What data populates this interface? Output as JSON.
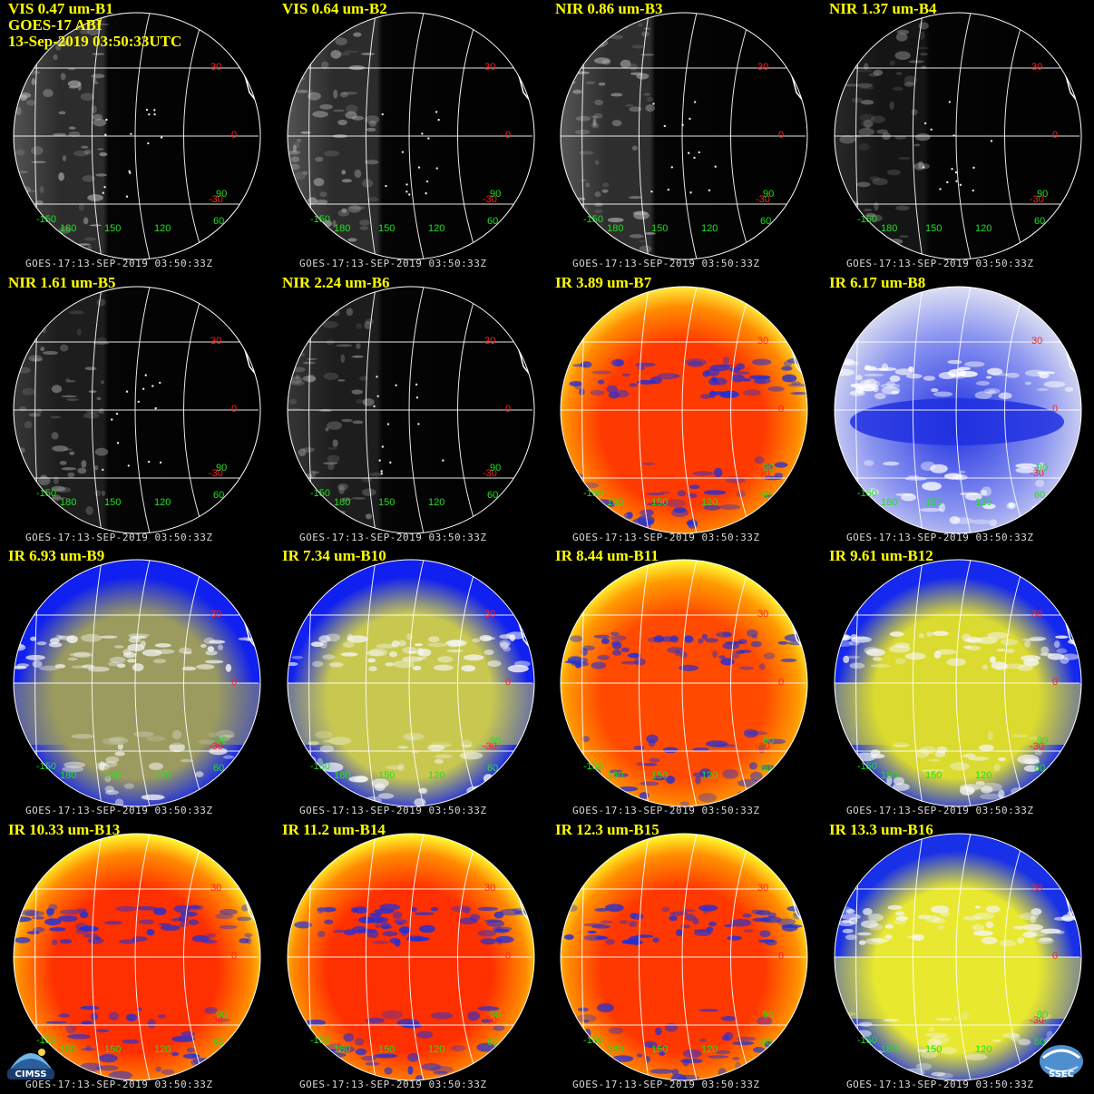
{
  "header": {
    "line1": "VIS 0.47 um-B1",
    "line2": "GOES-17 ABI",
    "line3": "13-Sep-2019 03:50:33UTC"
  },
  "footer_text": "GOES-17:13-SEP-2019 03:50:33Z",
  "lat_labels": {
    "n30": "30",
    "eq": "0",
    "s30": "-30"
  },
  "lon_labels": {
    "a": "-150",
    "b": "180",
    "c": "150",
    "d": "120",
    "e": "60",
    "f": "90"
  },
  "logos": {
    "left": "CIMSS",
    "right": "SSEC"
  },
  "panels": [
    {
      "title": "VIS 0.47 um-B1",
      "style": "vis",
      "colors": {
        "base": "#2c2c2c",
        "mid": "#5e5e5e",
        "hi": "#bdbdbd"
      }
    },
    {
      "title": "VIS 0.64 um-B2",
      "style": "vis",
      "colors": {
        "base": "#2c2c2c",
        "mid": "#5e5e5e",
        "hi": "#bdbdbd"
      }
    },
    {
      "title": "NIR 0.86 um-B3",
      "style": "vis",
      "colors": {
        "base": "#2e2e2e",
        "mid": "#626262",
        "hi": "#c2c2c2"
      }
    },
    {
      "title": "NIR 1.37 um-B4",
      "style": "vis",
      "colors": {
        "base": "#151515",
        "mid": "#2e2e2e",
        "hi": "#8c8c8c"
      }
    },
    {
      "title": "NIR 1.61 um-B5",
      "style": "vis",
      "colors": {
        "base": "#1d1d1d",
        "mid": "#3e3e3e",
        "hi": "#9a9a9a"
      }
    },
    {
      "title": "NIR 2.24 um-B6",
      "style": "vis",
      "colors": {
        "base": "#1d1d1d",
        "mid": "#3e3e3e",
        "hi": "#9a9a9a"
      }
    },
    {
      "title": "IR 3.89 um-B7",
      "style": "warm",
      "colors": {
        "base": "#ff3a00",
        "mid": "#ff8c00",
        "hi": "#ffee40",
        "edge": "#1f2fd8"
      }
    },
    {
      "title": "IR 6.17 um-B8",
      "style": "wv",
      "colors": {
        "base": "#2030e0",
        "mid": "#8c96f0",
        "hi": "#f2f2f2"
      }
    },
    {
      "title": "IR 6.93 um-B9",
      "style": "wvy",
      "colors": {
        "base": "#1020f0",
        "mid": "#9b9b60",
        "hi": "#f0f0f0"
      }
    },
    {
      "title": "IR 7.34 um-B10",
      "style": "wvy",
      "colors": {
        "base": "#1020f0",
        "mid": "#c8c850",
        "hi": "#f0f0f0"
      }
    },
    {
      "title": "IR 8.44 um-B11",
      "style": "warm",
      "colors": {
        "base": "#ff4a00",
        "mid": "#ff9a00",
        "hi": "#ffff3a",
        "edge": "#1f2fd8"
      }
    },
    {
      "title": "IR 9.61 um-B12",
      "style": "wvy",
      "colors": {
        "base": "#1428f0",
        "mid": "#dada30",
        "hi": "#f0f0f0"
      }
    },
    {
      "title": "IR 10.33 um-B13",
      "style": "warm",
      "colors": {
        "base": "#ff3000",
        "mid": "#ff8a00",
        "hi": "#ffff30",
        "edge": "#1f2fd8"
      }
    },
    {
      "title": "IR 11.2 um-B14",
      "style": "warm",
      "colors": {
        "base": "#ff3000",
        "mid": "#ff8a00",
        "hi": "#ffff30",
        "edge": "#1f2fd8"
      }
    },
    {
      "title": "IR 12.3 um-B15",
      "style": "warm",
      "colors": {
        "base": "#ff3800",
        "mid": "#ff9000",
        "hi": "#ffff30",
        "edge": "#1f2fd8"
      }
    },
    {
      "title": "IR 13.3 um-B16",
      "style": "wvy",
      "colors": {
        "base": "#1830e8",
        "mid": "#e8e830",
        "hi": "#f5f5f5"
      }
    }
  ]
}
